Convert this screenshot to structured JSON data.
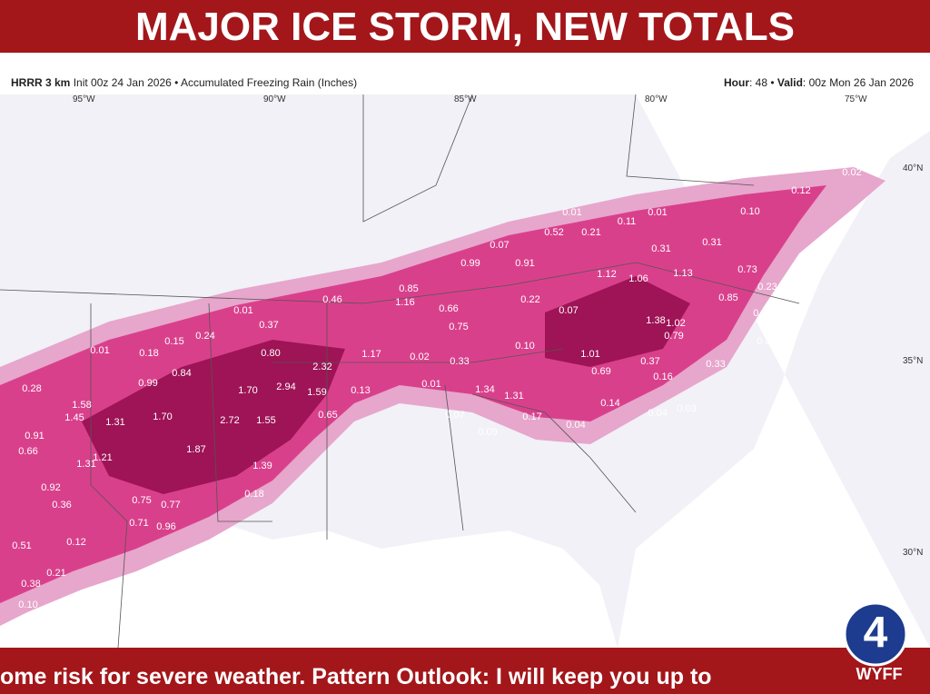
{
  "header": {
    "title": "MAJOR ICE STORM, NEW TOTALS"
  },
  "map_header": {
    "model": "HRRR 3 km",
    "description": "Init 00z 24 Jan 2026 • Accumulated Freezing Rain (Inches)",
    "hour_label": "Hour",
    "hour": ": 48 • ",
    "valid_label": "Valid",
    "valid": ": 00z Mon 26 Jan 2026"
  },
  "longitudes": [
    "95°W",
    "90°W",
    "85°W",
    "80°W",
    "75°W"
  ],
  "latitudes": [
    "40°N",
    "35°N",
    "30°N"
  ],
  "map_labels": [
    "0.02",
    "0.12",
    "0.10",
    "0.01",
    "0.11",
    "0.01",
    "0.52",
    "0.21",
    "0.07",
    "0.31",
    "0.31",
    "0.99",
    "0.91",
    "0.73",
    "1.12",
    "1.06",
    "1.13",
    "0.23",
    "0.85",
    "0.46",
    "1.16",
    "0.22",
    "0.85",
    "0.66",
    "0.01",
    "0.07",
    "0.25",
    "0.37",
    "0.75",
    "1.38",
    "1.02",
    "0.79",
    "0.24",
    "0.15",
    "0.01",
    "0.01",
    "0.18",
    "0.80",
    "1.17",
    "0.10",
    "1.01",
    "0.02",
    "0.33",
    "0.37",
    "0.33",
    "2.32",
    "0.84",
    "0.69",
    "0.16",
    "0.99",
    "0.01",
    "1.70",
    "2.94",
    "1.59",
    "0.13",
    "1.34",
    "1.31",
    "0.28",
    "0.14",
    "1.58",
    "1.45",
    "1.70",
    "2.72",
    "1.55",
    "0.65",
    "0.07",
    "0.17",
    "0.04",
    "0.03",
    "1.31",
    "0.09",
    "0.04",
    "0.91",
    "0.66",
    "1.87",
    "1.21",
    "1.31",
    "1.39",
    "0.92",
    "0.18",
    "0.36",
    "0.75",
    "0.77",
    "0.71",
    "0.96",
    "0.51",
    "0.12",
    "0.21",
    "0.38",
    "0.10"
  ],
  "ticker": {
    "text": "ome risk for severe weather. Pattern Outlook: I will keep you up to"
  },
  "logo": {
    "number": "4",
    "station": "WYFF"
  }
}
